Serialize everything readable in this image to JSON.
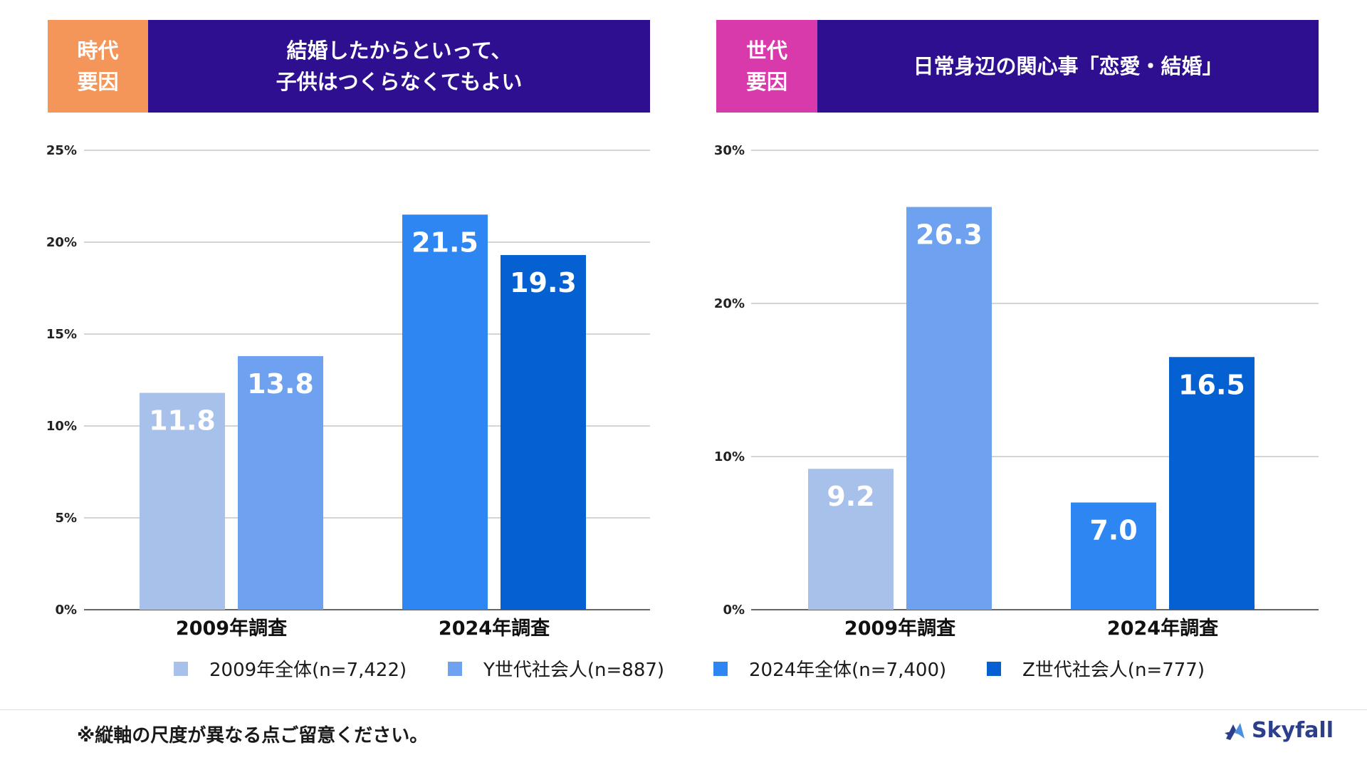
{
  "left_panel": {
    "tag_lines": [
      "時代",
      "要因"
    ],
    "title_lines": [
      "結婚したからといって、",
      "子供はつくらなくてもよい"
    ]
  },
  "right_panel": {
    "tag_lines": [
      "世代",
      "要因"
    ],
    "title_lines": [
      "日常身辺の関心事「恋愛・結婚」"
    ]
  },
  "colors": {
    "tag_left": "#f4965a",
    "tag_right": "#d83aac",
    "title_bg": "#2d0f8f",
    "series_2009_all": "#a7c1ea",
    "series_y_gen": "#6ea2f0",
    "series_2024_all": "#2e86f2",
    "series_z_gen": "#0561d1"
  },
  "chart_data": [
    {
      "type": "bar",
      "title": "結婚したからといって、子供はつくらなくてもよい",
      "categories": [
        "2009年調査",
        "2024年調査"
      ],
      "series": [
        {
          "name": "2009年全体(n=7,422)",
          "values": [
            11.8,
            null
          ]
        },
        {
          "name": "Y世代社会人(n=887)",
          "values": [
            13.8,
            null
          ]
        },
        {
          "name": "2024年全体(n=7,400)",
          "values": [
            null,
            21.5
          ]
        },
        {
          "name": "Z世代社会人(n=777)",
          "values": [
            null,
            19.3
          ]
        }
      ],
      "ylim": [
        0,
        25
      ],
      "yticks": [
        0,
        5,
        10,
        15,
        20,
        25
      ],
      "ytick_labels": [
        "0%",
        "5%",
        "10%",
        "15%",
        "20%",
        "25%"
      ],
      "xlabel": "",
      "ylabel": "",
      "grid": true
    },
    {
      "type": "bar",
      "title": "日常身辺の関心事「恋愛・結婚」",
      "categories": [
        "2009年調査",
        "2024年調査"
      ],
      "series": [
        {
          "name": "2009年全体(n=7,422)",
          "values": [
            9.2,
            null
          ]
        },
        {
          "name": "Y世代社会人(n=887)",
          "values": [
            26.3,
            null
          ]
        },
        {
          "name": "2024年全体(n=7,400)",
          "values": [
            null,
            7.0
          ]
        },
        {
          "name": "Z世代社会人(n=777)",
          "values": [
            null,
            16.5
          ]
        }
      ],
      "ylim": [
        0,
        30
      ],
      "yticks": [
        0,
        10,
        20,
        30
      ],
      "ytick_labels": [
        "0%",
        "10%",
        "20%",
        "30%"
      ],
      "xlabel": "",
      "ylabel": "",
      "grid": true
    }
  ],
  "legend": [
    "2009年全体(n=7,422)",
    "Y世代社会人(n=887)",
    "2024年全体(n=7,400)",
    "Z世代社会人(n=777)"
  ],
  "footnote": "※縦軸の尺度が異なる点ご留意ください。",
  "logo": {
    "text": "Skyfall",
    "icon": "skyfall-logo-icon"
  }
}
